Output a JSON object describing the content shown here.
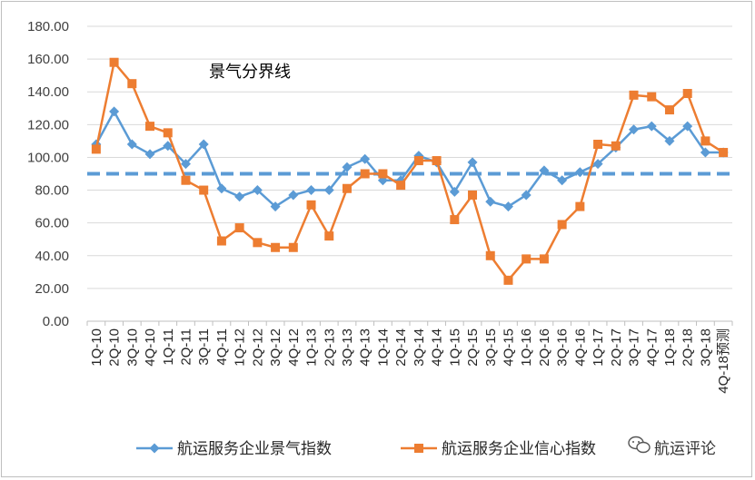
{
  "chart_data": {
    "type": "line",
    "title": "",
    "xlabel": "",
    "ylabel": "",
    "ylim": [
      0,
      180
    ],
    "yticks": [
      "0.00",
      "20.00",
      "40.00",
      "60.00",
      "80.00",
      "100.00",
      "120.00",
      "140.00",
      "160.00",
      "180.00"
    ],
    "grid": "horizontal",
    "legend_position": "bottom",
    "categories": [
      "1Q-10",
      "2Q-10",
      "3Q-10",
      "4Q-10",
      "1Q-11",
      "2Q-11",
      "3Q-11",
      "4Q-11",
      "1Q-12",
      "2Q-12",
      "3Q-12",
      "4Q-12",
      "1Q-13",
      "2Q-13",
      "3Q-13",
      "4Q-13",
      "1Q-14",
      "2Q-14",
      "3Q-14",
      "4Q-14",
      "1Q-15",
      "2Q-15",
      "3Q-15",
      "4Q-15",
      "1Q-16",
      "2Q-16",
      "3Q-16",
      "4Q-16",
      "1Q-17",
      "2Q-17",
      "3Q-17",
      "4Q-17",
      "1Q-18",
      "2Q-18",
      "3Q-18",
      "4Q-18预测"
    ],
    "series": [
      {
        "name": "航运服务企业景气指数",
        "color": "#5b9bd5",
        "marker": "diamond",
        "values": [
          108,
          128,
          108,
          102,
          107,
          96,
          108,
          81,
          76,
          80,
          70,
          77,
          80,
          80,
          94,
          99,
          86,
          86,
          101,
          97,
          79,
          97,
          73,
          70,
          77,
          92,
          86,
          91,
          96,
          106,
          117,
          119,
          110,
          119,
          103,
          103
        ]
      },
      {
        "name": "航运服务企业信心指数",
        "color": "#ed7d31",
        "marker": "square",
        "values": [
          105,
          158,
          145,
          119,
          115,
          86,
          80,
          49,
          57,
          48,
          45,
          45,
          71,
          52,
          81,
          90,
          90,
          83,
          98,
          98,
          62,
          77,
          40,
          25,
          38,
          38,
          59,
          70,
          108,
          107,
          138,
          137,
          129,
          139,
          110,
          103
        ]
      }
    ],
    "threshold": {
      "value": 90,
      "label": "景气分界线",
      "color": "#5b9bd5",
      "style": "dashed"
    }
  },
  "watermark": {
    "text": "航运评论",
    "icon": "wechat-icon"
  }
}
